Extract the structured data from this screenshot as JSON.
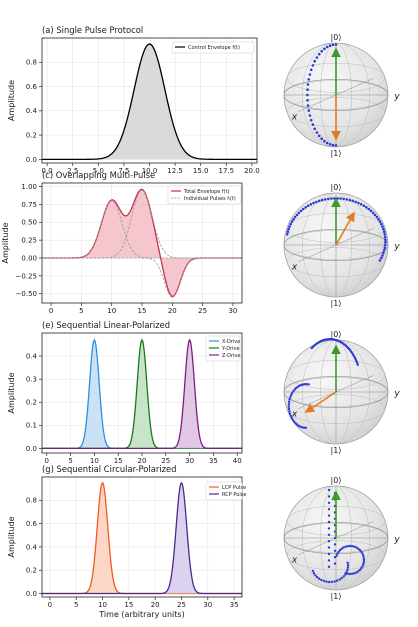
{
  "chart_data": [
    {
      "type": "area",
      "title": "(a) Single Pulse Protocol",
      "ylabel": "Amplitude",
      "xlabel": "",
      "xlim": [
        -0.5,
        20.5
      ],
      "ylim": [
        -0.03,
        1.0
      ],
      "xticks": [
        "0.0",
        "2.5",
        "5.0",
        "7.5",
        "10.0",
        "12.5",
        "15.0",
        "17.5",
        "20.0"
      ],
      "xtick_values": [
        0,
        2.5,
        5,
        7.5,
        10,
        12.5,
        15,
        17.5,
        20
      ],
      "yticks": [
        "0.0",
        "0.2",
        "0.4",
        "0.6",
        "0.8"
      ],
      "ytick_values": [
        0,
        0.2,
        0.4,
        0.6,
        0.8
      ],
      "legend_position": "top-right",
      "series": [
        {
          "name": "Control Envelope f(t)",
          "color": "#000000",
          "fill": "#d4d4d4",
          "kind": "gaussian",
          "amplitude": 0.95,
          "center": 10,
          "sigma": 1.5
        }
      ]
    },
    {
      "type": "area",
      "title": "(c) Overlapping Multi-Pulse",
      "ylabel": "Amplitude",
      "xlabel": "",
      "xlim": [
        -1.5,
        31.5
      ],
      "ylim": [
        -0.63,
        1.05
      ],
      "xticks": [
        "0",
        "5",
        "10",
        "15",
        "20",
        "25",
        "30"
      ],
      "xtick_values": [
        0,
        5,
        10,
        15,
        20,
        25,
        30
      ],
      "yticks": [
        "−0.50",
        "−0.25",
        "0.00",
        "0.25",
        "0.50",
        "0.75",
        "1.00"
      ],
      "ytick_values": [
        -0.5,
        -0.25,
        0,
        0.25,
        0.5,
        0.75,
        1.0
      ],
      "legend_position": "top-right",
      "series": [
        {
          "name": "Total Envelope f(t)",
          "color": "#c8334f",
          "fill": "#f3bcc6",
          "kind": "sum"
        },
        {
          "name": "Individual Pulses fᵢ(t)",
          "color": "#999999",
          "dashed": true,
          "kind": "components"
        }
      ],
      "components": [
        {
          "amplitude": 0.8,
          "center": 10,
          "sigma": 1.7
        },
        {
          "amplitude": 0.95,
          "center": 15,
          "sigma": 1.7
        },
        {
          "amplitude": -0.55,
          "center": 20,
          "sigma": 1.3
        }
      ]
    },
    {
      "type": "area",
      "title": "(e) Sequential Linear-Polarized",
      "ylabel": "Amplitude",
      "xlabel": "",
      "xlim": [
        -1,
        41
      ],
      "ylim": [
        -0.02,
        0.5
      ],
      "xticks": [
        "0",
        "5",
        "10",
        "15",
        "20",
        "25",
        "30",
        "35",
        "40"
      ],
      "xtick_values": [
        0,
        5,
        10,
        15,
        20,
        25,
        30,
        35,
        40
      ],
      "yticks": [
        "0.0",
        "0.1",
        "0.2",
        "0.3",
        "0.4"
      ],
      "ytick_values": [
        0,
        0.1,
        0.2,
        0.3,
        0.4
      ],
      "legend_position": "top-right",
      "series": [
        {
          "name": "X-Drive",
          "color": "#2f8fe0",
          "fill": "#c2ddf5",
          "kind": "gaussian",
          "amplitude": 0.47,
          "center": 10,
          "sigma": 1.0
        },
        {
          "name": "Y-Drive",
          "color": "#1a7a1a",
          "fill": "#bfe0bf",
          "kind": "gaussian",
          "amplitude": 0.47,
          "center": 20,
          "sigma": 1.0
        },
        {
          "name": "Z-Drive",
          "color": "#7b1f86",
          "fill": "#dcc0e0",
          "kind": "gaussian",
          "amplitude": 0.47,
          "center": 30,
          "sigma": 1.0
        }
      ]
    },
    {
      "type": "area",
      "title": "(g) Sequential Circular-Polarized",
      "ylabel": "Amplitude",
      "xlabel": "Time (arbitrary units)",
      "xlim": [
        -1.5,
        36.5
      ],
      "ylim": [
        -0.03,
        1.0
      ],
      "xticks": [
        "0",
        "5",
        "10",
        "15",
        "20",
        "25",
        "30",
        "35"
      ],
      "xtick_values": [
        0,
        5,
        10,
        15,
        20,
        25,
        30,
        35
      ],
      "yticks": [
        "0.0",
        "0.2",
        "0.4",
        "0.6",
        "0.8"
      ],
      "ytick_values": [
        0,
        0.2,
        0.4,
        0.6,
        0.8
      ],
      "legend_position": "top-right",
      "series": [
        {
          "name": "LCP Pulse",
          "color": "#ef5b1f",
          "fill": "#fbd0bd",
          "kind": "gaussian",
          "amplitude": 0.95,
          "center": 10,
          "sigma": 1.0
        },
        {
          "name": "RCP Pulse",
          "color": "#4b2a8c",
          "fill": "#d6c9ec",
          "kind": "gaussian",
          "amplitude": 0.95,
          "center": 25,
          "sigma": 1.0
        }
      ]
    }
  ],
  "bloch_spheres": [
    {
      "panel": "(b)",
      "top_label": "|0⟩",
      "bottom_label": "|1⟩",
      "x_label": "x",
      "y_label": "y",
      "state_vector": "down",
      "trajectory": "meridian-x"
    },
    {
      "panel": "(d)",
      "top_label": "|0⟩",
      "bottom_label": "|1⟩",
      "x_label": "x",
      "y_label": "y",
      "state_vector": "upper-right",
      "trajectory": "loop-upper"
    },
    {
      "panel": "(f)",
      "top_label": "|0⟩",
      "bottom_label": "|1⟩",
      "x_label": "x",
      "y_label": "y",
      "state_vector": "toward-x",
      "trajectory": "linear-sequence"
    },
    {
      "panel": "(h)",
      "top_label": "|0⟩",
      "bottom_label": "|1⟩",
      "x_label": "x",
      "y_label": "y",
      "state_vector": "none",
      "trajectory": "circular-sequence"
    }
  ],
  "colors": {
    "state_vector_up": "#3a9a2a",
    "state_vector_final": "#e07b20",
    "trajectory": "#2b3bd6",
    "sphere_fill": "#ededed"
  }
}
